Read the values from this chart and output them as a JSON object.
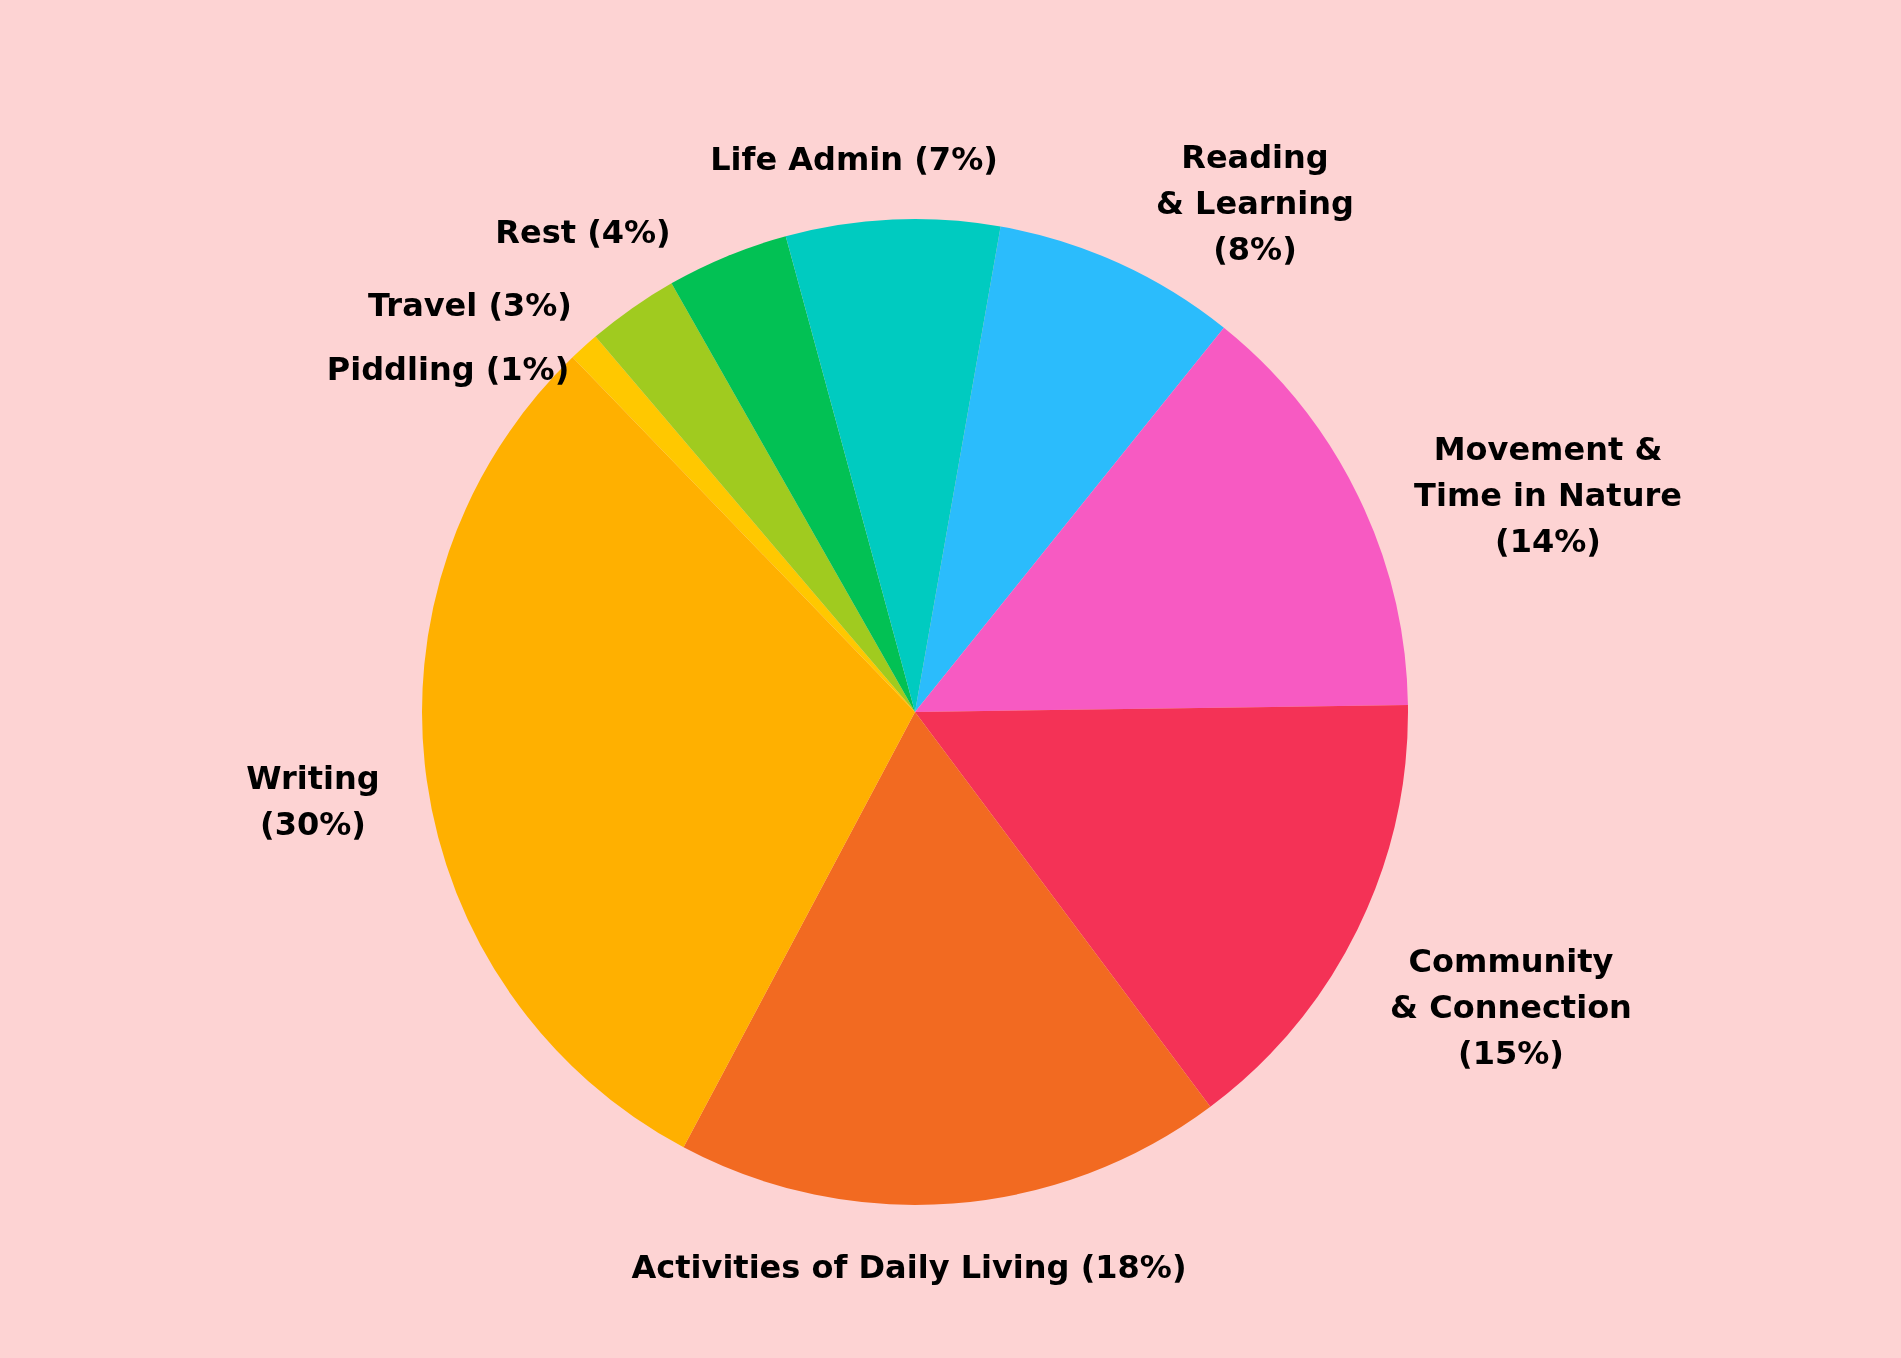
{
  "chart_data": {
    "type": "pie",
    "categories": [
      "Reading & Learning",
      "Movement & Time in Nature",
      "Community & Connection",
      "Activities of Daily Living",
      "Writing",
      "Piddling",
      "Travel",
      "Rest",
      "Life Admin"
    ],
    "values": [
      8,
      14,
      15,
      18,
      30,
      1,
      3,
      4,
      7
    ],
    "value_labels": [
      "(8%)",
      "(14%)",
      "(15%)",
      "(18%)",
      "(30%)",
      "(1%)",
      "(3%)",
      "(4%)",
      "(7%)"
    ],
    "colors": [
      "#2bbcfc",
      "#f75ac2",
      "#f43256",
      "#f26a21",
      "#ffb000",
      "#ffc800",
      "#a0cb1f",
      "#02c154",
      "#00cbc0"
    ],
    "legend": false
  }
}
